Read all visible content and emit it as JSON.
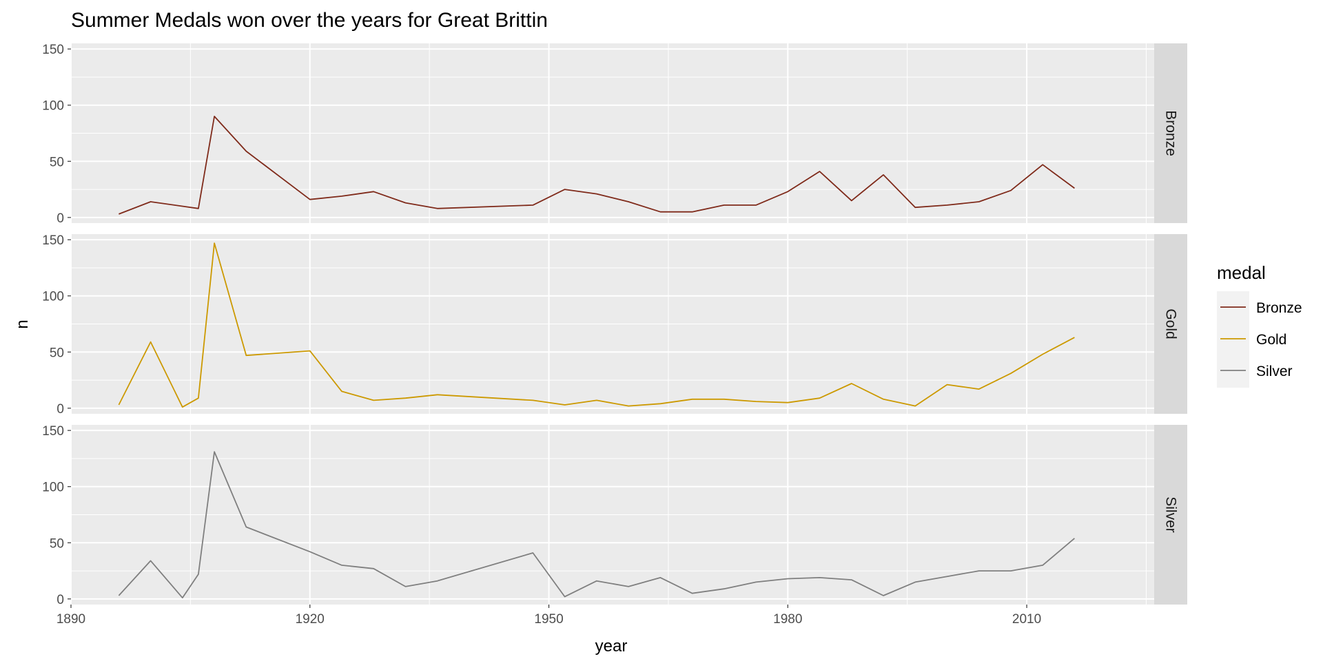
{
  "chart_data": {
    "type": "line",
    "title": "Summer Medals won over the years for Great Brittin",
    "xlabel": "year",
    "ylabel": "n",
    "xlim": [
      1890,
      2026
    ],
    "ylim": [
      -5,
      155
    ],
    "x_ticks": [
      1890,
      1920,
      1950,
      1980,
      2010
    ],
    "y_ticks": [
      0,
      50,
      100,
      150
    ],
    "x_tick_labels": [
      "1890",
      "1920",
      "1950",
      "1980",
      "2010"
    ],
    "y_tick_labels": [
      "0",
      "50",
      "100",
      "150"
    ],
    "grid": true,
    "facets": "rows by medal",
    "legend": {
      "title": "medal",
      "position": "right"
    },
    "x": [
      1896,
      1900,
      1904,
      1906,
      1908,
      1912,
      1920,
      1924,
      1928,
      1932,
      1936,
      1948,
      1952,
      1956,
      1960,
      1964,
      1968,
      1972,
      1976,
      1980,
      1984,
      1988,
      1992,
      1996,
      2000,
      2004,
      2008,
      2012,
      2016
    ],
    "series": [
      {
        "name": "Bronze",
        "color": "#7f2a1a",
        "values": [
          3,
          14,
          null,
          8,
          90,
          59,
          16,
          19,
          23,
          13,
          8,
          11,
          25,
          21,
          14,
          5,
          5,
          11,
          11,
          23,
          41,
          15,
          38,
          9,
          11,
          14,
          24,
          47,
          26
        ]
      },
      {
        "name": "Gold",
        "color": "#cc9900",
        "values": [
          3,
          59,
          1,
          9,
          147,
          47,
          51,
          15,
          7,
          9,
          12,
          7,
          3,
          7,
          2,
          4,
          8,
          8,
          6,
          5,
          9,
          22,
          8,
          2,
          21,
          17,
          31,
          48,
          63
        ]
      },
      {
        "name": "Silver",
        "color": "#7f7f7f",
        "values": [
          3,
          34,
          1,
          22,
          131,
          64,
          42,
          30,
          27,
          11,
          16,
          41,
          2,
          16,
          11,
          19,
          5,
          9,
          15,
          18,
          19,
          17,
          3,
          15,
          20,
          25,
          25,
          30,
          54
        ]
      }
    ]
  }
}
